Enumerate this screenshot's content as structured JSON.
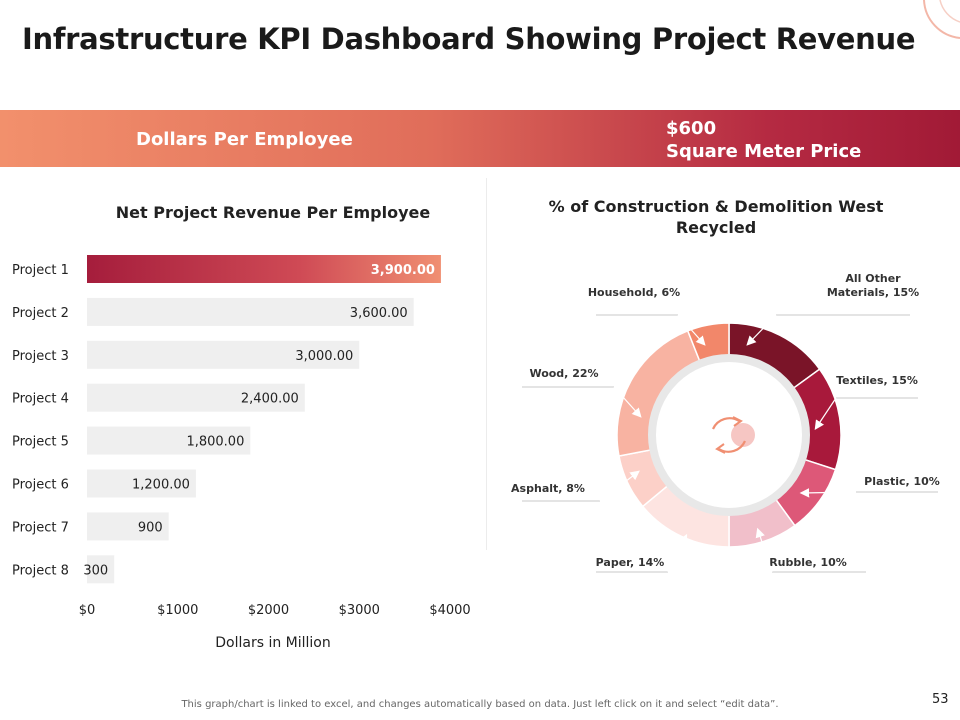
{
  "title": "Infrastructure KPI Dashboard Showing Project Revenue",
  "banner": {
    "left_label": "Dollars Per Employee",
    "right_value": "$600",
    "right_label": "Square Meter Price"
  },
  "colors": {
    "banner_start": "#f2906c",
    "banner_end": "#a11a36",
    "bar_highlight": "#b52a42",
    "bar_default": "#efefef"
  },
  "footer": "This graph/chart is linked to excel, and changes automatically based on data. Just left click on it and select “edit data”.",
  "page_number": "53",
  "chart_data": [
    {
      "type": "bar",
      "orientation": "horizontal",
      "title": "Net Project Revenue Per Employee",
      "xlabel": "Dollars  in Million",
      "ylabel": "",
      "categories": [
        "Project 1",
        "Project 2",
        "Project 3",
        "Project 4",
        "Project 5",
        "Project 6",
        "Project 7",
        "Project 8"
      ],
      "values": [
        3900,
        3600,
        3000,
        2400,
        1800,
        1200,
        900,
        300
      ],
      "value_labels": [
        "3,900.00",
        "3,600.00",
        "3,000.00",
        "2,400.00",
        "1,800.00",
        "1,200.00",
        "900",
        "300"
      ],
      "xlim": [
        0,
        4000
      ],
      "xticks": [
        0,
        1000,
        2000,
        3000,
        4000
      ],
      "xtick_labels": [
        "$0",
        "$1000",
        "$2000",
        "$3000",
        "$4000"
      ],
      "grid": false
    },
    {
      "type": "pie",
      "style": "donut",
      "title": "% of Construction & Demolition West Recycled",
      "slices": [
        {
          "label": "All Other Materials",
          "value": 15,
          "text": "All Other Materials, 15%",
          "color": "#7a1428"
        },
        {
          "label": "Textiles",
          "value": 15,
          "text": "Textiles, 15%",
          "color": "#a8193b"
        },
        {
          "label": "Plastic",
          "value": 10,
          "text": "Plastic, 10%",
          "color": "#dd5878"
        },
        {
          "label": "Rubble",
          "value": 10,
          "text": "Rubble, 10%",
          "color": "#f1bfca"
        },
        {
          "label": "Paper",
          "value": 14,
          "text": "Paper, 14%",
          "color": "#fde4e1"
        },
        {
          "label": "Asphalt",
          "value": 8,
          "text": "Asphalt, 8%",
          "color": "#fcd0c8"
        },
        {
          "label": "Wood",
          "value": 22,
          "text": "Wood, 22%",
          "color": "#f8b3a2"
        },
        {
          "label": "Household",
          "value": 6,
          "text": "Household, 6%",
          "color": "#f2876a"
        }
      ]
    }
  ]
}
